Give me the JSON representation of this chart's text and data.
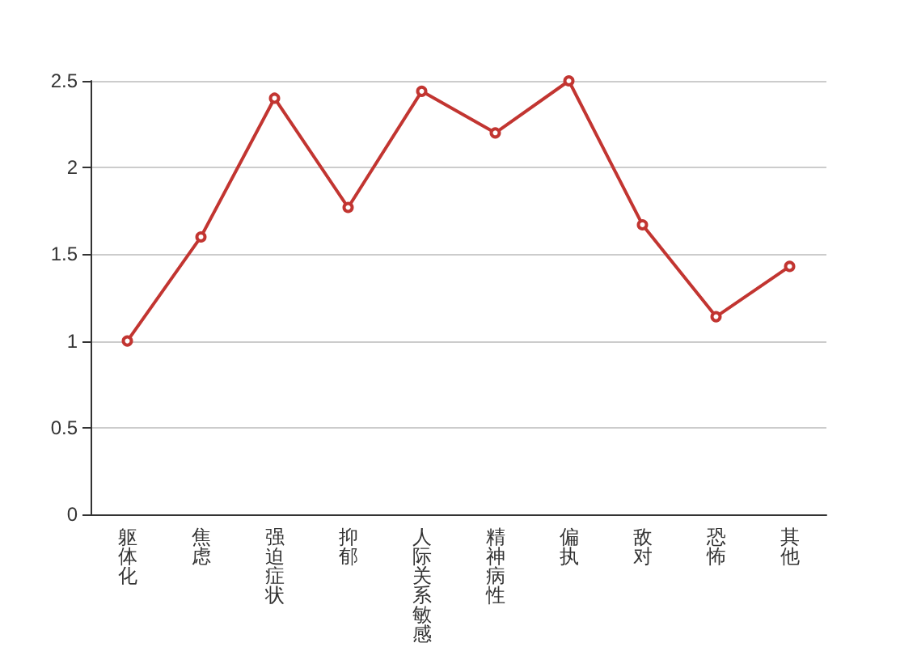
{
  "chart_data": {
    "type": "line",
    "categories": [
      "躯体化",
      "焦虑",
      "强迫症状",
      "抑郁",
      "人际关系敏感",
      "精神病性",
      "偏执",
      "敌对",
      "恐怖",
      "其他"
    ],
    "series": [
      {
        "color": "#c23531",
        "values": [
          1.0,
          1.6,
          2.4,
          1.77,
          2.44,
          2.2,
          2.5,
          1.67,
          1.14,
          1.43
        ]
      }
    ],
    "ylim": [
      0,
      2.5
    ],
    "yticks": [
      0,
      0.5,
      1,
      1.5,
      2,
      2.5
    ],
    "grid": "y",
    "marker": "circle"
  }
}
